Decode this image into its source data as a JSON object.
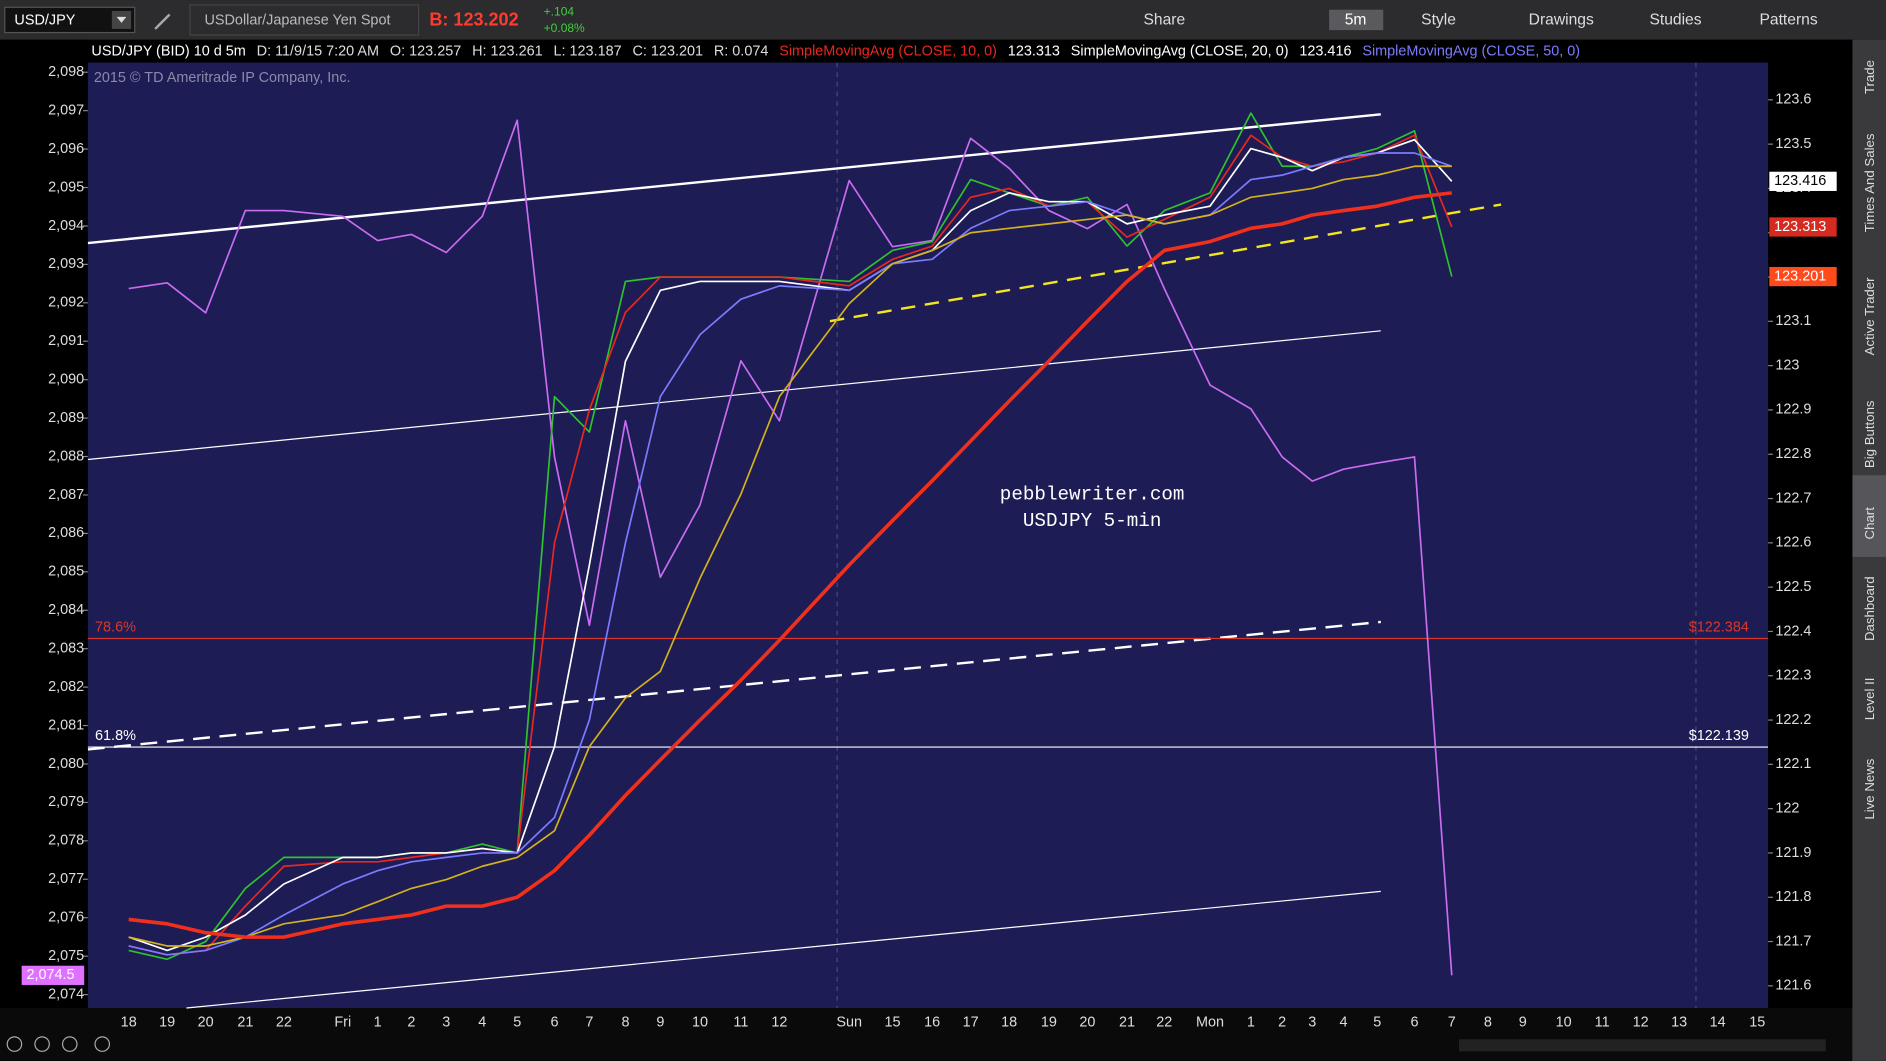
{
  "toolbar": {
    "symbol": "USD/JPY",
    "description": "USDollar/Japanese Yen Spot",
    "bid": "B: 123.202",
    "change": "+.104",
    "change_pct": "+0.08%",
    "buttons": [
      "Share",
      "5m",
      "Style",
      "Drawings",
      "Studies",
      "Patterns"
    ]
  },
  "info_bar": [
    "D: 11/9/15 7:20 AM",
    "O: 123.257",
    "H: 123.261",
    "L: 123.187",
    "C: 123.201",
    "R: 0.074"
  ],
  "side_tabs": [
    "Trade",
    "Times And Sales",
    "Active Trader",
    "Big Buttons",
    "Chart",
    "Dashboard",
    "Level II",
    "Live News"
  ],
  "chart_data": {
    "type": "line",
    "copyright": "2015 © TD Ameritrade IP Company, Inc.",
    "annotations": [
      "pebblewriter.com",
      "USDJPY 5-min"
    ],
    "categories": [
      "18",
      "19",
      "20",
      "21",
      "22",
      "Fri",
      "1",
      "2",
      "3",
      "4",
      "5",
      "6",
      "7",
      "8",
      "9",
      "10",
      "11",
      "12",
      "Sun",
      "15",
      "16",
      "17",
      "18",
      "19",
      "20",
      "21",
      "22",
      "Mon",
      "1",
      "2",
      "3",
      "4",
      "5",
      "6",
      "7",
      "8",
      "9",
      "10",
      "11",
      "12",
      "13",
      "14",
      "15"
    ],
    "series": [
      {
        "name": "USD/JPY (BID) 10 d 5m",
        "color": "#2ec22e",
        "tag_color": "#ff4a1c",
        "last_label": "123.201",
        "values": [
          121.68,
          121.66,
          121.7,
          121.82,
          121.89,
          121.89,
          121.89,
          121.9,
          121.9,
          121.92,
          121.9,
          122.93,
          122.85,
          123.19,
          123.2,
          123.2,
          123.2,
          123.2,
          123.19,
          123.26,
          123.28,
          123.42,
          123.39,
          123.36,
          123.38,
          123.27,
          123.35,
          123.39,
          123.57,
          123.45,
          123.45,
          123.47,
          123.49,
          123.53,
          123.201,
          null,
          null,
          null,
          null,
          null,
          null,
          null,
          null
        ]
      },
      {
        "name": "SimpleMovingAvg (CLOSE, 10, 0)",
        "color": "#e8281e",
        "tag_color": "#d42a20",
        "last_label": "123.313",
        "values": [
          121.69,
          121.67,
          121.68,
          121.78,
          121.87,
          121.88,
          121.88,
          121.89,
          121.9,
          121.91,
          121.9,
          122.6,
          122.9,
          123.12,
          123.2,
          123.2,
          123.2,
          123.2,
          123.18,
          123.24,
          123.27,
          123.38,
          123.4,
          123.36,
          123.37,
          123.29,
          123.33,
          123.38,
          123.52,
          123.47,
          123.45,
          123.46,
          123.48,
          123.52,
          123.313,
          null,
          null,
          null,
          null,
          null,
          null,
          null,
          null
        ]
      },
      {
        "name": "SimpleMovingAvg (CLOSE, 20, 0)",
        "color": "#ffffff",
        "tag_color": "#ffffff",
        "last_label": "123.416",
        "values": [
          121.71,
          121.68,
          121.71,
          121.76,
          121.83,
          121.89,
          121.89,
          121.9,
          121.9,
          121.91,
          121.9,
          122.14,
          122.55,
          123.01,
          123.17,
          123.19,
          123.19,
          123.19,
          123.17,
          123.23,
          123.26,
          123.35,
          123.39,
          123.37,
          123.37,
          123.32,
          123.34,
          123.36,
          123.49,
          123.47,
          123.44,
          123.47,
          123.48,
          123.51,
          123.416,
          null,
          null,
          null,
          null,
          null,
          null,
          null,
          null
        ]
      },
      {
        "name": "SimpleMovingAvg (CLOSE, 50, 0)",
        "color": "#7b7bff",
        "values": [
          121.69,
          121.67,
          121.68,
          121.71,
          121.76,
          121.83,
          121.86,
          121.88,
          121.89,
          121.9,
          121.9,
          121.98,
          122.2,
          122.6,
          122.93,
          123.07,
          123.15,
          123.18,
          123.17,
          123.23,
          123.24,
          123.31,
          123.35,
          123.36,
          123.37,
          123.34,
          123.32,
          123.34,
          123.42,
          123.43,
          123.45,
          123.47,
          123.48,
          123.48,
          123.45,
          null,
          null,
          null,
          null,
          null,
          null,
          null,
          null
        ]
      },
      {
        "color": "#d4b21c",
        "values": [
          121.71,
          121.69,
          121.69,
          121.71,
          121.74,
          121.76,
          121.79,
          121.82,
          121.84,
          121.87,
          121.89,
          121.95,
          122.14,
          122.25,
          122.31,
          122.52,
          122.71,
          122.93,
          123.14,
          123.23,
          123.26,
          123.3,
          123.31,
          123.32,
          123.33,
          123.34,
          123.32,
          123.34,
          123.38,
          123.39,
          123.4,
          123.42,
          123.43,
          123.45,
          123.45,
          null,
          null,
          null,
          null,
          null,
          null,
          null,
          null
        ]
      },
      {
        "color": "#f0301c",
        "width": 3,
        "values": [
          121.75,
          121.74,
          121.72,
          121.71,
          121.71,
          121.74,
          121.75,
          121.76,
          121.78,
          121.78,
          121.8,
          121.86,
          121.94,
          122.03,
          122.11,
          122.2,
          122.29,
          122.38,
          122.55,
          122.65,
          122.74,
          122.83,
          122.92,
          123.01,
          123.1,
          123.19,
          123.26,
          123.28,
          123.31,
          123.32,
          123.34,
          123.35,
          123.36,
          123.38,
          123.39,
          null,
          null,
          null,
          null,
          null,
          null,
          null,
          null
        ]
      },
      {
        "color": "#c86cf0",
        "tag_color": "#e070ff",
        "axis": "y2",
        "last_label": "2,074.5",
        "values": [
          2092.37,
          2092.52,
          2091.74,
          2094.4,
          2094.4,
          2094.25,
          2093.62,
          2093.78,
          2093.31,
          2094.25,
          2096.75,
          2087.99,
          2083.61,
          2088.93,
          2084.86,
          2086.74,
          2090.49,
          2088.93,
          2095.18,
          2093.46,
          2093.62,
          2096.28,
          2095.5,
          2094.4,
          2093.93,
          2094.56,
          2092.37,
          2089.86,
          2089.24,
          2087.99,
          2087.36,
          2087.67,
          2087.83,
          2087.99,
          2074.5,
          null,
          null,
          null,
          null,
          null,
          null,
          null,
          null
        ]
      }
    ],
    "levels": [
      {
        "label": "78.6%",
        "value": 122.384,
        "value_label": "$122.384",
        "color": "#d8382c"
      },
      {
        "label": "61.8%",
        "value": 122.139,
        "value_label": "$122.139",
        "color": "#ffffff"
      }
    ],
    "ylim": [
      121.55,
      123.684
    ],
    "yticks": [
      121.6,
      121.7,
      121.8,
      121.9,
      122,
      122.1,
      122.2,
      122.3,
      122.4,
      122.5,
      122.6,
      122.7,
      122.8,
      122.9,
      123,
      123.1,
      123.2,
      123.3,
      123.4,
      123.5,
      123.6
    ],
    "y2lim": [
      2073.65,
      2098.25
    ],
    "y2ticks": [
      {
        "value": 2074,
        "label": "2,074"
      },
      {
        "value": 2075,
        "label": "2,075"
      },
      {
        "value": 2076,
        "label": "2,076"
      },
      {
        "value": 2077,
        "label": "2,077"
      },
      {
        "value": 2078,
        "label": "2,078"
      },
      {
        "value": 2079,
        "label": "2,079"
      },
      {
        "value": 2080,
        "label": "2,080"
      },
      {
        "value": 2081,
        "label": "2,081"
      },
      {
        "value": 2082,
        "label": "2,082"
      },
      {
        "value": 2083,
        "label": "2,083"
      },
      {
        "value": 2084,
        "label": "2,084"
      },
      {
        "value": 2085,
        "label": "2,085"
      },
      {
        "value": 2086,
        "label": "2,086"
      },
      {
        "value": 2087,
        "label": "2,087"
      },
      {
        "value": 2088,
        "label": "2,088"
      },
      {
        "value": 2089,
        "label": "2,089"
      },
      {
        "value": 2090,
        "label": "2,090"
      },
      {
        "value": 2091,
        "label": "2,091"
      },
      {
        "value": 2092,
        "label": "2,092"
      },
      {
        "value": 2093,
        "label": "2,093"
      },
      {
        "value": 2094,
        "label": "2,094"
      },
      {
        "value": 2095,
        "label": "2,095"
      },
      {
        "value": 2096,
        "label": "2,096"
      },
      {
        "value": 2097,
        "label": "2,097"
      },
      {
        "value": 2098,
        "label": "2,098"
      }
    ],
    "grid": false
  }
}
